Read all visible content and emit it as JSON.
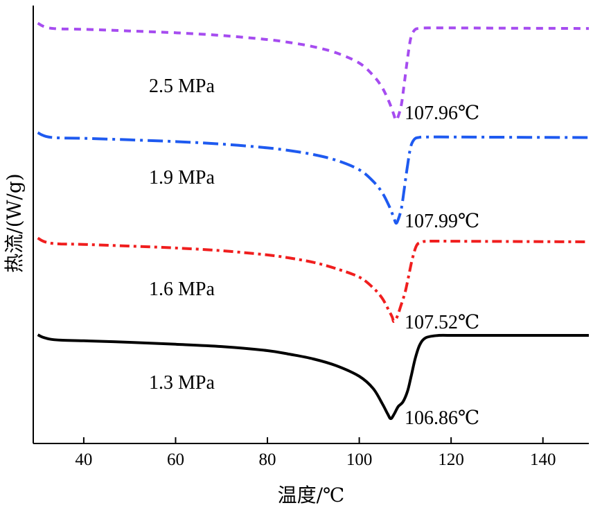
{
  "chart_data": {
    "type": "line",
    "xlabel": "温度/℃",
    "ylabel": "热流/(W/g)",
    "xlim": [
      29,
      150
    ],
    "x_ticks": [
      40,
      60,
      80,
      100,
      120,
      140
    ],
    "y_ticks_shown": false,
    "grid": false,
    "legend": "none",
    "series": [
      {
        "name": "2.5 MPa",
        "peak_label": "107.96℃",
        "color": "#A64CF0",
        "dash": "10,8",
        "offset": 0.0,
        "x": [
          30,
          30.8,
          31.8,
          33,
          35,
          40,
          50,
          60,
          70,
          80,
          85,
          90,
          95,
          100,
          103,
          105,
          106.5,
          107.5,
          107.96,
          108.5,
          109.2,
          109.8,
          110.5,
          111.2,
          112,
          113,
          115,
          120,
          130,
          140,
          150
        ],
        "y": [
          0.5,
          1.6,
          2.5,
          3.0,
          3.3,
          3.5,
          4.3,
          5.2,
          6.5,
          8.5,
          10.0,
          12.0,
          15.0,
          20.0,
          26.0,
          32.0,
          39.0,
          45.0,
          48.0,
          46.0,
          40.0,
          30.0,
          18.0,
          8.0,
          4.0,
          3.0,
          2.8,
          2.8,
          2.9,
          3.0,
          3.1
        ]
      },
      {
        "name": "1.9 MPa",
        "peak_label": "107.99℃",
        "color": "#1E5AF0",
        "dash": "22,7,4,7",
        "offset": 0.0,
        "x": [
          30,
          30.8,
          31.8,
          33,
          35,
          40,
          50,
          60,
          70,
          80,
          85,
          90,
          95,
          100,
          103,
          105,
          106.5,
          107.5,
          107.99,
          108.5,
          109.2,
          109.8,
          110.5,
          111.2,
          112,
          113,
          115,
          120,
          130,
          140,
          150
        ],
        "y": [
          0.5,
          1.6,
          2.5,
          3.0,
          3.3,
          3.5,
          4.3,
          5.2,
          6.5,
          8.5,
          10.0,
          12.0,
          15.0,
          20.0,
          26.0,
          32.0,
          39.0,
          45.0,
          48.0,
          46.0,
          40.0,
          30.0,
          18.0,
          8.0,
          4.0,
          3.0,
          2.8,
          2.8,
          2.9,
          3.0,
          3.1
        ]
      },
      {
        "name": "1.6 MPa",
        "peak_label": "107.52℃",
        "color": "#F01E1E",
        "dash": "14,6,4,6",
        "offset": 0.0,
        "x": [
          30,
          30.8,
          31.8,
          33,
          35,
          40,
          50,
          60,
          70,
          80,
          85,
          90,
          95,
          100,
          103,
          105,
          106.5,
          107.2,
          107.52,
          108.2,
          109.0,
          110.0,
          110.8,
          111.6,
          112.5,
          113.5,
          115,
          120,
          130,
          140,
          150
        ],
        "y": [
          0.5,
          1.6,
          2.5,
          3.0,
          3.3,
          3.5,
          4.3,
          5.2,
          6.5,
          8.5,
          10.0,
          12.0,
          15.0,
          19.0,
          24.0,
          29.0,
          35.0,
          38.0,
          40.0,
          38.0,
          33.0,
          26.0,
          18.0,
          10.0,
          4.0,
          2.5,
          2.0,
          2.0,
          2.1,
          2.2,
          2.3
        ]
      },
      {
        "name": "1.3 MPa",
        "peak_label": "106.86℃",
        "color": "#000000",
        "dash": "",
        "offset": 0.0,
        "x": [
          30,
          30.8,
          31.8,
          33,
          35,
          40,
          50,
          60,
          70,
          80,
          85,
          90,
          95,
          100,
          103,
          105,
          106.2,
          106.86,
          107.6,
          108.5,
          109.5,
          110.5,
          111.3,
          112.2,
          113.2,
          114.5,
          117,
          120,
          130,
          140,
          150
        ],
        "y": [
          0.5,
          1.8,
          2.8,
          3.6,
          4.1,
          4.5,
          5.5,
          6.8,
          8.3,
          11.0,
          13.5,
          16.5,
          21.0,
          28.0,
          36.0,
          46.0,
          53.0,
          56.0,
          53.0,
          48.0,
          45.0,
          38.0,
          28.0,
          16.0,
          7.0,
          2.5,
          1.0,
          0.9,
          0.9,
          0.9,
          0.9
        ]
      }
    ]
  }
}
